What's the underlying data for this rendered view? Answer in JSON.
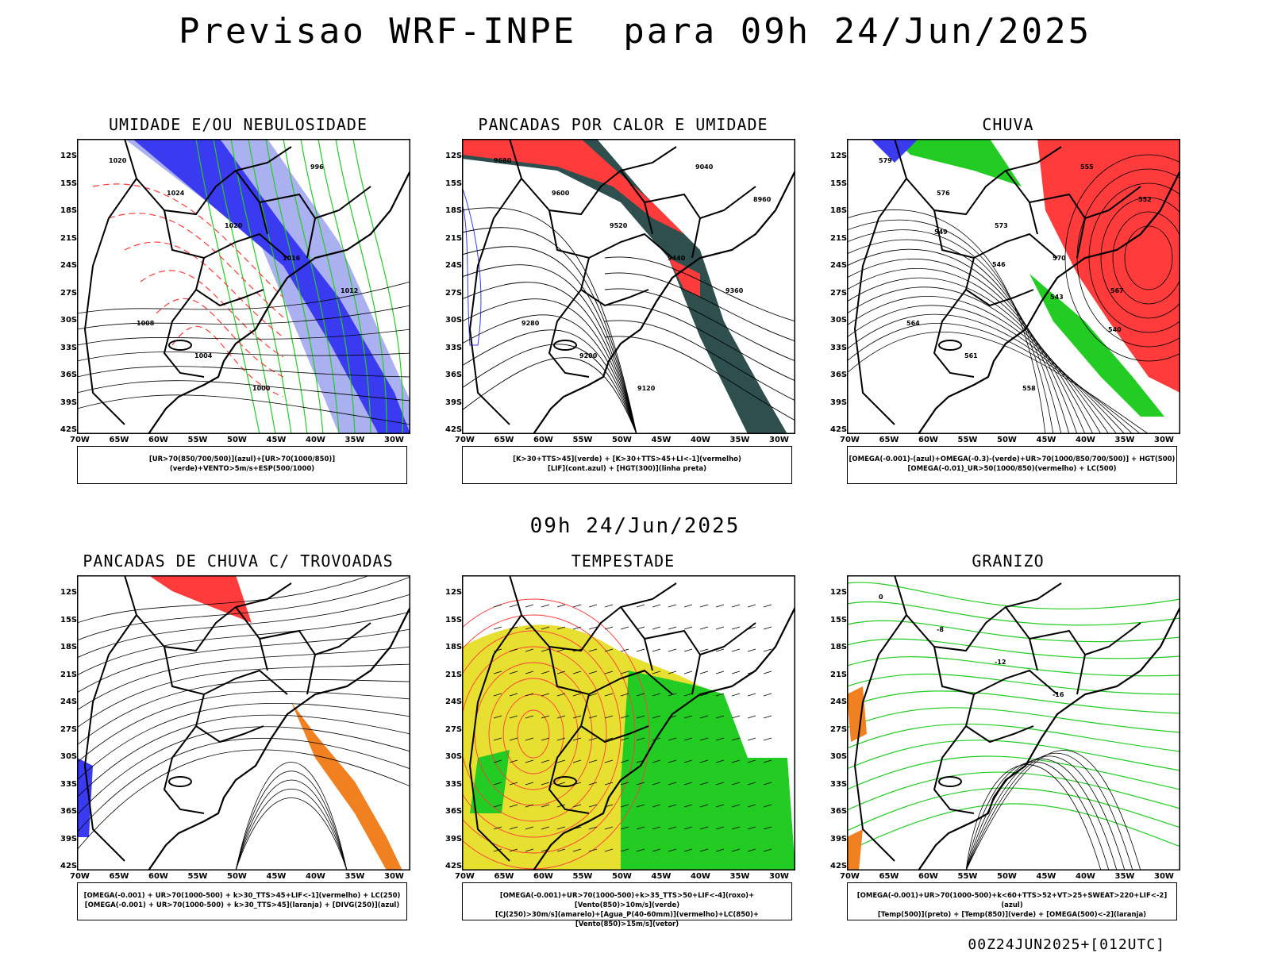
{
  "header": {
    "title": "Previsao WRF-INPE  para 09h 24/Jun/2025"
  },
  "subheader": {
    "time": "09h 24/Jun/2025"
  },
  "footer": {
    "stamp": "00Z24JUN2025+[012UTC]"
  },
  "axes": {
    "lat_labels": [
      "12S",
      "15S",
      "18S",
      "21S",
      "24S",
      "27S",
      "30S",
      "33S",
      "36S",
      "39S",
      "42S"
    ],
    "lon_labels": [
      "70W",
      "65W",
      "60W",
      "55W",
      "50W",
      "45W",
      "40W",
      "35W",
      "30W"
    ]
  },
  "colors": {
    "blue": "#3a3af0",
    "lightblue": "#aab0f0",
    "green": "#22cc22",
    "red": "#ff3b3b",
    "orange": "#f08020",
    "yellow": "#e8e030",
    "darkteal": "#2f4f4f"
  },
  "panels": [
    {
      "title": "UMIDADE E/OU NEBULOSIDADE",
      "legend": [
        "[UR>70(850/700/500)](azul)+[UR>70(1000/850)](verde)+VENTO>5m/s+ESP(500/1000)"
      ],
      "contour_labels": [
        "1020",
        "1024",
        "1020",
        "1016",
        "1012",
        "1008",
        "1004",
        "1000",
        "996"
      ]
    },
    {
      "title": "PANCADAS POR CALOR E UMIDADE",
      "legend": [
        "[K>30+TTS>45](verde) + [K>30+TTS>45+LI<-1](vermelho)",
        "[LIF](cont.azul) + [HGT(300)](linha preta)"
      ],
      "contour_labels": [
        "9680",
        "9600",
        "9520",
        "9440",
        "9360",
        "9280",
        "9200",
        "9120",
        "9040",
        "8960"
      ]
    },
    {
      "title": "CHUVA",
      "legend": [
        "[OMEGA(-0.001)-(azul)+OMEGA(-0.3)-(verde)+UR>70(1000/850/700/500)] + HGT(500)",
        "[OMEGA(-0.01)_UR>50(1000/850)(vermelho) + LC(500)"
      ],
      "contour_labels": [
        "579",
        "576",
        "573",
        "570",
        "567",
        "564",
        "561",
        "558",
        "555",
        "552",
        "549",
        "546",
        "543",
        "540"
      ]
    },
    {
      "title": "PANCADAS DE CHUVA C/ TROVOADAS",
      "legend": [
        "[OMEGA(-0.001) + UR>70(1000-500) + k>30_TTS>45+LIF<-1](vermelho) + LC(250)",
        "[OMEGA(-0.001) + UR>70(1000-500) + k>30_TTS>45](laranja) + [DIVG(250)](azul)"
      ],
      "contour_labels": []
    },
    {
      "title": "TEMPESTADE",
      "legend": [
        "[OMEGA(-0.001)+UR>70(1000-500)+k>35_TTS>50+LIF<-4](roxo)+[Vento(850)>10m/s](verde)",
        "[CJ(250)>30m/s](amarelo)+[Agua_P(40-60mm)](vermelho)+LC(850)+[Vento(850)>15m/s](vetor)"
      ],
      "contour_labels": []
    },
    {
      "title": "GRANIZO",
      "legend": [
        "[OMEGA(-0.001)+UR>70(1000-500)+k<60+TTS>52+VT>25+SWEAT>220+LIF<-2](azul)",
        "[Temp(500)](preto) + [Temp(850)](verde) + [OMEGA(500)<-2](laranja)"
      ],
      "contour_labels": [
        "0",
        "-8",
        "-12",
        "-16"
      ]
    }
  ]
}
